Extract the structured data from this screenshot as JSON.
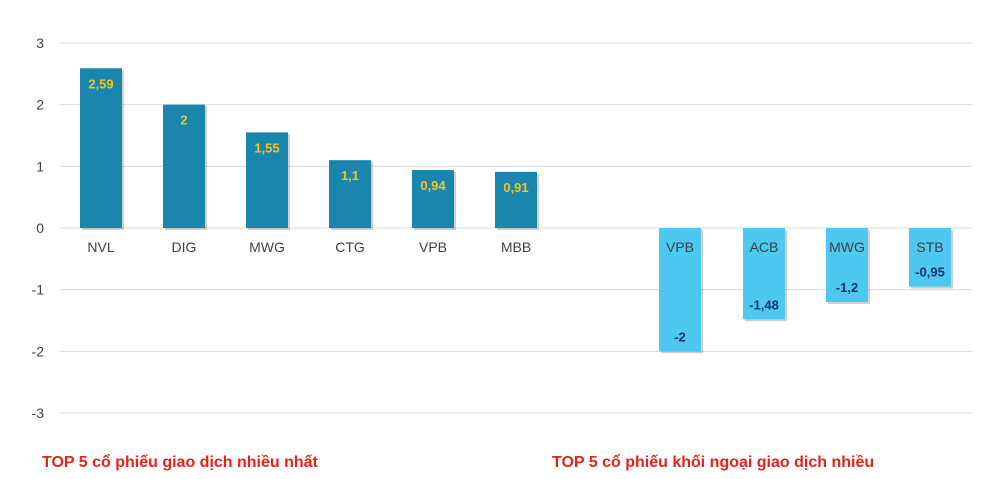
{
  "chart_data": {
    "type": "bar",
    "ylim": [
      -3,
      3
    ],
    "yticks": [
      "3",
      "2",
      "1",
      "0",
      "-1",
      "-2",
      "-3"
    ],
    "grid": true,
    "series": [
      {
        "categories": [
          "NVL",
          "DIG",
          "MWG",
          "CTG",
          "VPB",
          "MBB"
        ],
        "values": [
          2.59,
          2,
          1.55,
          1.1,
          0.94,
          0.91
        ],
        "data_labels": [
          "2,59",
          "2",
          "1,55",
          "1,1",
          "0,94",
          "0,91"
        ],
        "color": "#1a86ae",
        "label_color": "#f5c518"
      },
      {
        "categories": [
          "VPB",
          "ACB",
          "MWG",
          "STB"
        ],
        "values": [
          -2,
          -1.48,
          -1.2,
          -0.95
        ],
        "data_labels": [
          "-2",
          "-1,48",
          "-1,2",
          "-0,95"
        ],
        "color": "#4dc8f0",
        "label_color": "#13336b"
      }
    ],
    "captions": [
      "TOP 5 cổ phiếu giao dịch nhiều nhất",
      "TOP 5 cổ phiếu khối ngoại giao dịch nhiều"
    ],
    "caption_color": "#e5231b"
  }
}
